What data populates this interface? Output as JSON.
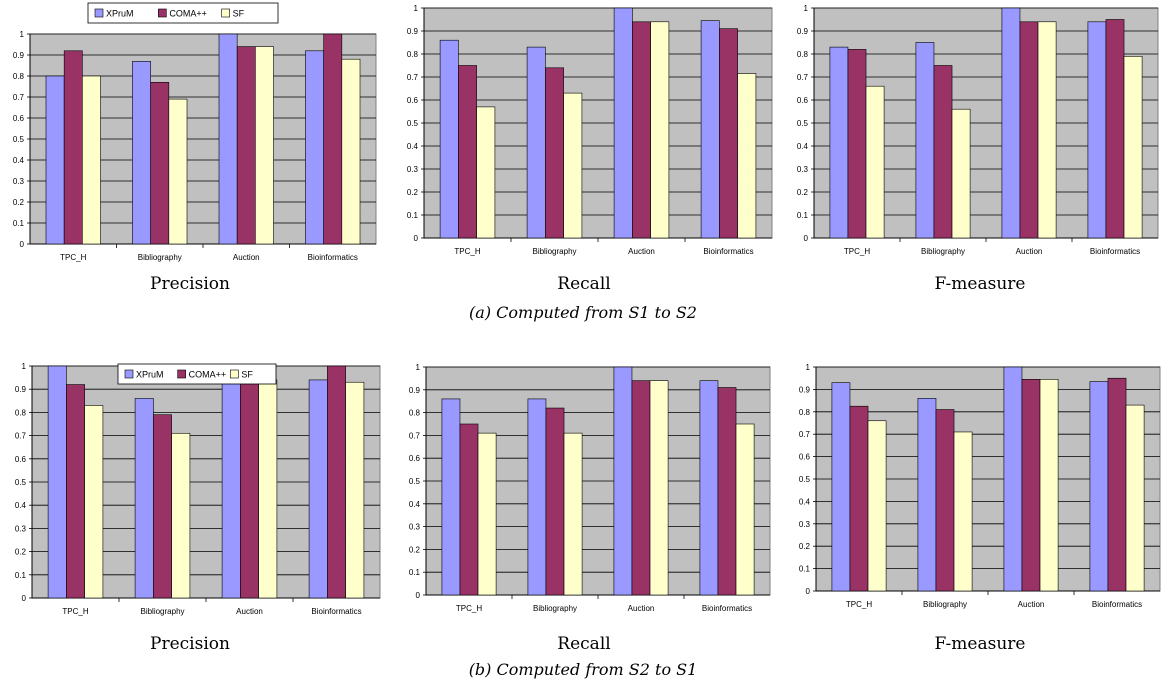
{
  "colors": {
    "plot_bg": "#c0c0c0",
    "xprum": "#9999ff",
    "coma": "#993366",
    "sf": "#ffffcc"
  },
  "row_captions": [
    "(a) Computed from S1 to S2",
    "(b) Computed from S2 to S1"
  ],
  "chart_data": [
    {
      "type": "bar",
      "title": "",
      "caption": "Precision",
      "categories": [
        "TPC_H",
        "Bibliography",
        "Auction",
        "Bioinformatics"
      ],
      "ylim": [
        0,
        1
      ],
      "yticks": [
        "0",
        "0.1",
        "0.2",
        "0.3",
        "0.4",
        "0.5",
        "0.6",
        "0.7",
        "0.8",
        "0.9",
        "1"
      ],
      "grid": true,
      "legend": "top-left",
      "series": [
        {
          "name": "XPruM",
          "values": [
            0.8,
            0.87,
            1.0,
            0.92
          ]
        },
        {
          "name": "COMA++",
          "values": [
            0.92,
            0.77,
            0.94,
            1.0
          ]
        },
        {
          "name": "SF",
          "values": [
            0.8,
            0.69,
            0.94,
            0.88
          ]
        }
      ]
    },
    {
      "type": "bar",
      "title": "",
      "caption": "Recall",
      "categories": [
        "TPC_H",
        "Bibliography",
        "Auction",
        "Bioinformatics"
      ],
      "ylim": [
        0,
        1
      ],
      "yticks": [
        "0",
        "0.1",
        "0.2",
        "0.3",
        "0.4",
        "0.5",
        "0.6",
        "0.7",
        "0.8",
        "0.9",
        "1"
      ],
      "grid": true,
      "legend": "none",
      "series": [
        {
          "values": [
            0.86,
            0.83,
            1.0,
            0.945
          ]
        },
        {
          "values": [
            0.75,
            0.74,
            0.94,
            0.91
          ]
        },
        {
          "values": [
            0.57,
            0.63,
            0.94,
            0.715
          ]
        }
      ]
    },
    {
      "type": "bar",
      "title": "",
      "caption": "F-measure",
      "categories": [
        "TPC_H",
        "Bibliography",
        "Auction",
        "Bioinformatics"
      ],
      "ylim": [
        0,
        1
      ],
      "yticks": [
        "0",
        "0.1",
        "0.2",
        "0.3",
        "0.4",
        "0.5",
        "0.6",
        "0.7",
        "0.8",
        "0.9",
        "1"
      ],
      "grid": true,
      "legend": "none",
      "series": [
        {
          "values": [
            0.83,
            0.85,
            1.0,
            0.94
          ]
        },
        {
          "values": [
            0.82,
            0.75,
            0.94,
            0.95
          ]
        },
        {
          "values": [
            0.66,
            0.56,
            0.94,
            0.79
          ]
        }
      ]
    },
    {
      "type": "bar",
      "title": "",
      "caption": "Precision",
      "categories": [
        "TPC_H",
        "Bibliography",
        "Auction",
        "Bioinformatics"
      ],
      "ylim": [
        0,
        1
      ],
      "yticks": [
        "0",
        "0.1",
        "0.2",
        "0.3",
        "0.4",
        "0.5",
        "0.6",
        "0.7",
        "0.8",
        "0.9",
        "1"
      ],
      "grid": true,
      "legend": "top-right",
      "series": [
        {
          "name": "XPruM",
          "values": [
            1.0,
            0.86,
            1.0,
            0.94
          ]
        },
        {
          "name": "COMA++",
          "values": [
            0.92,
            0.79,
            0.94,
            1.0
          ]
        },
        {
          "name": "SF",
          "values": [
            0.83,
            0.71,
            0.94,
            0.93
          ]
        }
      ]
    },
    {
      "type": "bar",
      "title": "",
      "caption": "Recall",
      "categories": [
        "TPC_H",
        "Bibliography",
        "Auction",
        "Bioinformatics"
      ],
      "ylim": [
        0,
        1
      ],
      "yticks": [
        "0",
        "0.1",
        "0.2",
        "0.3",
        "0.4",
        "0.5",
        "0.6",
        "0.7",
        "0.8",
        "0.9",
        "1"
      ],
      "grid": true,
      "legend": "none",
      "series": [
        {
          "values": [
            0.86,
            0.86,
            1.0,
            0.94
          ]
        },
        {
          "values": [
            0.75,
            0.82,
            0.94,
            0.91
          ]
        },
        {
          "values": [
            0.71,
            0.71,
            0.94,
            0.75
          ]
        }
      ]
    },
    {
      "type": "bar",
      "title": "",
      "caption": "F-measure",
      "categories": [
        "TPC_H",
        "Bibliography",
        "Auction",
        "Bioinformatics"
      ],
      "ylim": [
        0,
        1
      ],
      "yticks": [
        "0",
        "0.1",
        "0.2",
        "0.3",
        "0.4",
        "0.5",
        "0.6",
        "0.7",
        "0.8",
        "0.9",
        "1"
      ],
      "grid": true,
      "legend": "none",
      "series": [
        {
          "values": [
            0.93,
            0.86,
            1.0,
            0.935
          ]
        },
        {
          "values": [
            0.825,
            0.81,
            0.945,
            0.95
          ]
        },
        {
          "values": [
            0.76,
            0.71,
            0.945,
            0.83
          ]
        }
      ]
    }
  ]
}
